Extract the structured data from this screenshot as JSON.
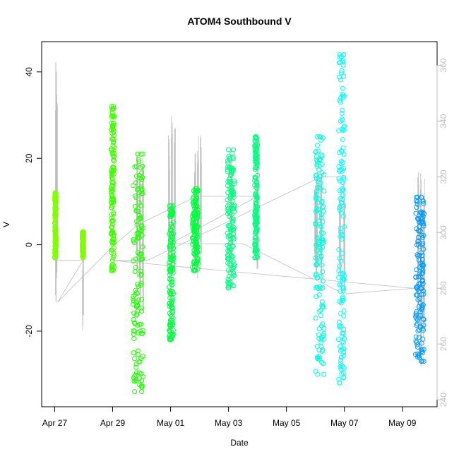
{
  "chart_data": {
    "type": "scatter",
    "title": "ATOM4 Southbound V",
    "xlabel": "Date",
    "ylabel": "V",
    "x_ticks": [
      "Apr 27",
      "Apr 29",
      "May 01",
      "May 03",
      "May 05",
      "May 07",
      "May 09"
    ],
    "x_tick_days": [
      0,
      2,
      4,
      6,
      8,
      10,
      12
    ],
    "xlim_days": [
      -0.45,
      13.2
    ],
    "ylim": [
      -37.5,
      47
    ],
    "y_ticks": [
      -20,
      0,
      20,
      40
    ],
    "y_tick_labels": [
      "-20",
      "0",
      "20",
      "40"
    ],
    "secondary_axis": {
      "ylim": [
        237.5,
        368.5
      ],
      "ticks": [
        240,
        260,
        280,
        300,
        320,
        340,
        360
      ],
      "tick_labels": [
        "240",
        "260",
        "280",
        "300",
        "320",
        "340",
        "360"
      ],
      "color": "#bebebe"
    },
    "grid": false,
    "colors": {
      "line": "#bebebe",
      "series_1": "#80ff00",
      "series_2": "#40ff00",
      "series_3": "#20ff00",
      "series_4": "#00ff40",
      "series_5": "#00ff80",
      "series_6": "#00ffdd",
      "series_7": "#00ffff",
      "series_8": "#0099ff"
    },
    "series": [
      {
        "x": [
          0.0,
          0.05
        ],
        "y": [
          -3,
          12
        ],
        "color": "#80ff00"
      },
      {
        "x": [
          0.95,
          1.0
        ],
        "y": [
          -3,
          3
        ],
        "color": "#80ff00"
      },
      {
        "x": [
          1.95,
          2.05
        ],
        "y": [
          -6,
          32
        ],
        "color": "#40ff00"
      },
      {
        "x": [
          2.7,
          3.05
        ],
        "y": [
          -34,
          21
        ],
        "color": "#20ff00"
      },
      {
        "x": [
          3.95,
          4.1
        ],
        "y": [
          -22,
          9
        ],
        "color": "#00ff40"
      },
      {
        "x": [
          4.75,
          4.95
        ],
        "y": [
          -6,
          13
        ],
        "color": "#00ff40"
      },
      {
        "x": [
          5.95,
          6.2
        ],
        "y": [
          -10,
          22
        ],
        "color": "#00ff80"
      },
      {
        "x": [
          6.9,
          7.0
        ],
        "y": [
          -3,
          25
        ],
        "color": "#00ff80"
      },
      {
        "x": [
          9.0,
          9.3
        ],
        "y": [
          -30,
          25
        ],
        "color": "#00ffdd"
      },
      {
        "x": [
          9.8,
          10.0
        ],
        "y": [
          -32,
          44
        ],
        "color": "#00ffff"
      },
      {
        "x": [
          12.45,
          12.75
        ],
        "y": [
          -27,
          11
        ],
        "color": "#0099ff"
      }
    ],
    "secondary_line": {
      "spikes": [
        {
          "x": 0.05,
          "y": [
            275,
            362
          ]
        },
        {
          "x": 0.08,
          "y": [
            280,
            350
          ]
        },
        {
          "x": 0.98,
          "y": [
            262,
            292
          ]
        },
        {
          "x": 2.85,
          "y": [
            280,
            330
          ]
        },
        {
          "x": 2.95,
          "y": [
            275,
            326
          ]
        },
        {
          "x": 3.05,
          "y": [
            270,
            328
          ]
        },
        {
          "x": 3.95,
          "y": [
            282,
            336
          ]
        },
        {
          "x": 4.05,
          "y": [
            285,
            345
          ]
        },
        {
          "x": 4.15,
          "y": [
            286,
            338
          ]
        },
        {
          "x": 4.85,
          "y": [
            284,
            330
          ]
        },
        {
          "x": 4.95,
          "y": [
            283,
            335
          ]
        },
        {
          "x": 5.05,
          "y": [
            282,
            338
          ]
        },
        {
          "x": 6.1,
          "y": [
            284,
            330
          ]
        },
        {
          "x": 7.0,
          "y": [
            286,
            325
          ]
        },
        {
          "x": 9.0,
          "y": [
            285,
            318
          ]
        },
        {
          "x": 9.05,
          "y": [
            278,
            322
          ]
        },
        {
          "x": 9.2,
          "y": [
            278,
            324
          ]
        },
        {
          "x": 9.85,
          "y": [
            280,
            318
          ]
        },
        {
          "x": 10.0,
          "y": [
            278,
            320
          ]
        },
        {
          "x": 12.55,
          "y": [
            265,
            324
          ]
        },
        {
          "x": 12.65,
          "y": [
            250,
            323
          ]
        },
        {
          "x": 12.75,
          "y": [
            262,
            320
          ]
        }
      ],
      "path": [
        {
          "x": 0.05,
          "y": 275
        },
        {
          "x": 0.05,
          "y": 290
        },
        {
          "x": 0.98,
          "y": 290
        },
        {
          "x": 0.1,
          "y": 275
        },
        {
          "x": 2.0,
          "y": 295
        },
        {
          "x": 2.9,
          "y": 303
        },
        {
          "x": 3.5,
          "y": 306
        },
        {
          "x": 4.9,
          "y": 313
        },
        {
          "x": 6.0,
          "y": 313
        },
        {
          "x": 7.0,
          "y": 313
        },
        {
          "x": 4.0,
          "y": 296
        },
        {
          "x": 6.5,
          "y": 296
        },
        {
          "x": 9.0,
          "y": 283
        },
        {
          "x": 10.0,
          "y": 278
        },
        {
          "x": 12.4,
          "y": 280
        },
        {
          "x": 2.0,
          "y": 290
        },
        {
          "x": 3.2,
          "y": 290
        },
        {
          "x": 9.2,
          "y": 320
        },
        {
          "x": 10.0,
          "y": 320
        }
      ]
    }
  }
}
